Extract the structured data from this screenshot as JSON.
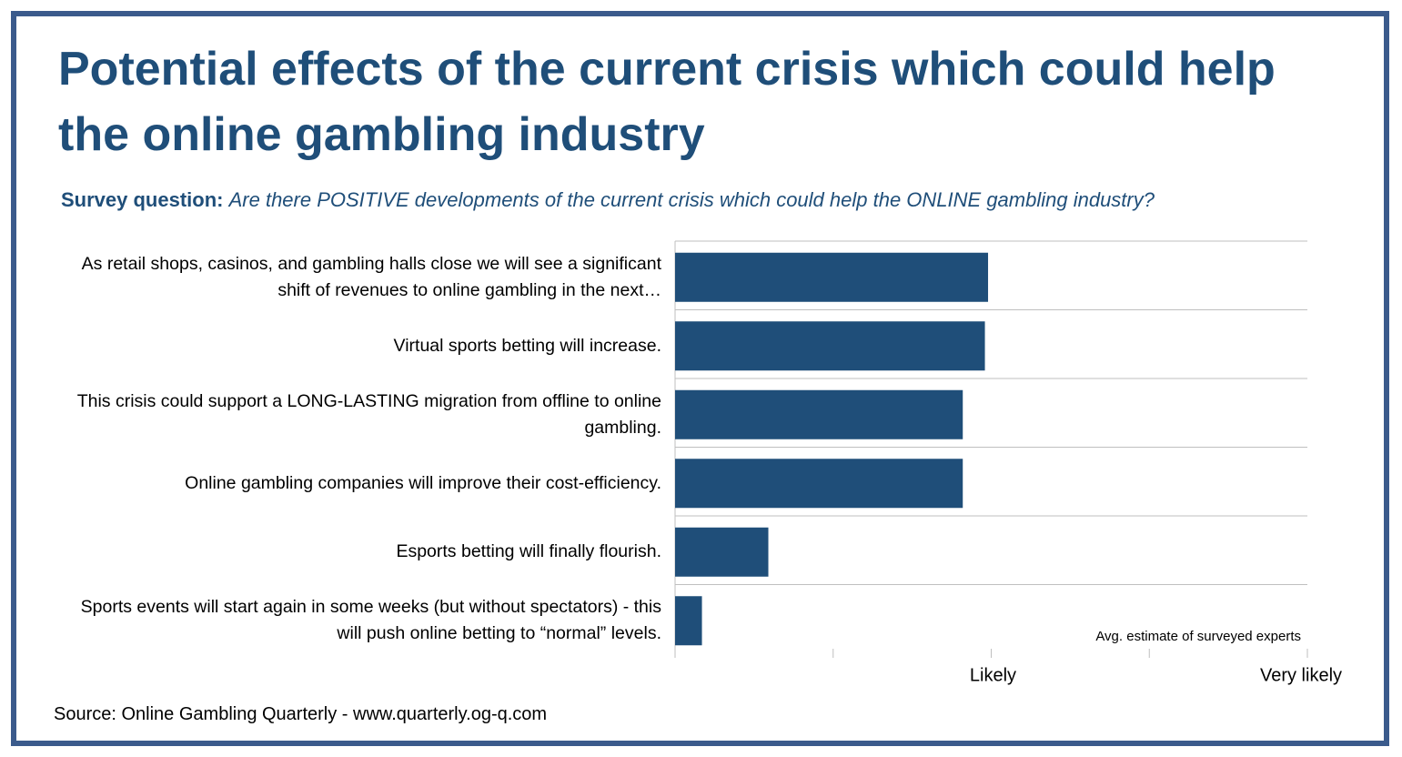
{
  "chart_data": {
    "type": "barh",
    "title": "Potential effects of the current crisis which could help the online gambling industry",
    "subtitle_label": "Survey question:",
    "subtitle": "Are there POSITIVE developments of the current crisis which could help the ONLINE gambling industry?",
    "categories": [
      "As retail shops, casinos, and gambling halls close we will see a significant shift of revenues to online gambling in the next…",
      "Virtual sports betting will increase.",
      "This crisis could support a LONG-LASTING migration from offline to online gambling.",
      "Online gambling companies will improve their cost-efficiency.",
      "Esports betting will finally flourish.",
      "Sports events will start again in some weeks (but without spectators) - this will push online betting to “normal” levels."
    ],
    "values": [
      1.98,
      1.96,
      1.82,
      1.82,
      0.59,
      0.17
    ],
    "color": "#1f4e79",
    "xlim": [
      0,
      4
    ],
    "xticks": [
      {
        "value": 2,
        "label": "Likely"
      },
      {
        "value": 4,
        "label": "Very likely"
      }
    ],
    "xminorticks": [
      0,
      1,
      3
    ],
    "annotation": "Avg. estimate of surveyed experts",
    "source": "Source: Online Gambling Quarterly - www.quarterly.og-q.com"
  }
}
